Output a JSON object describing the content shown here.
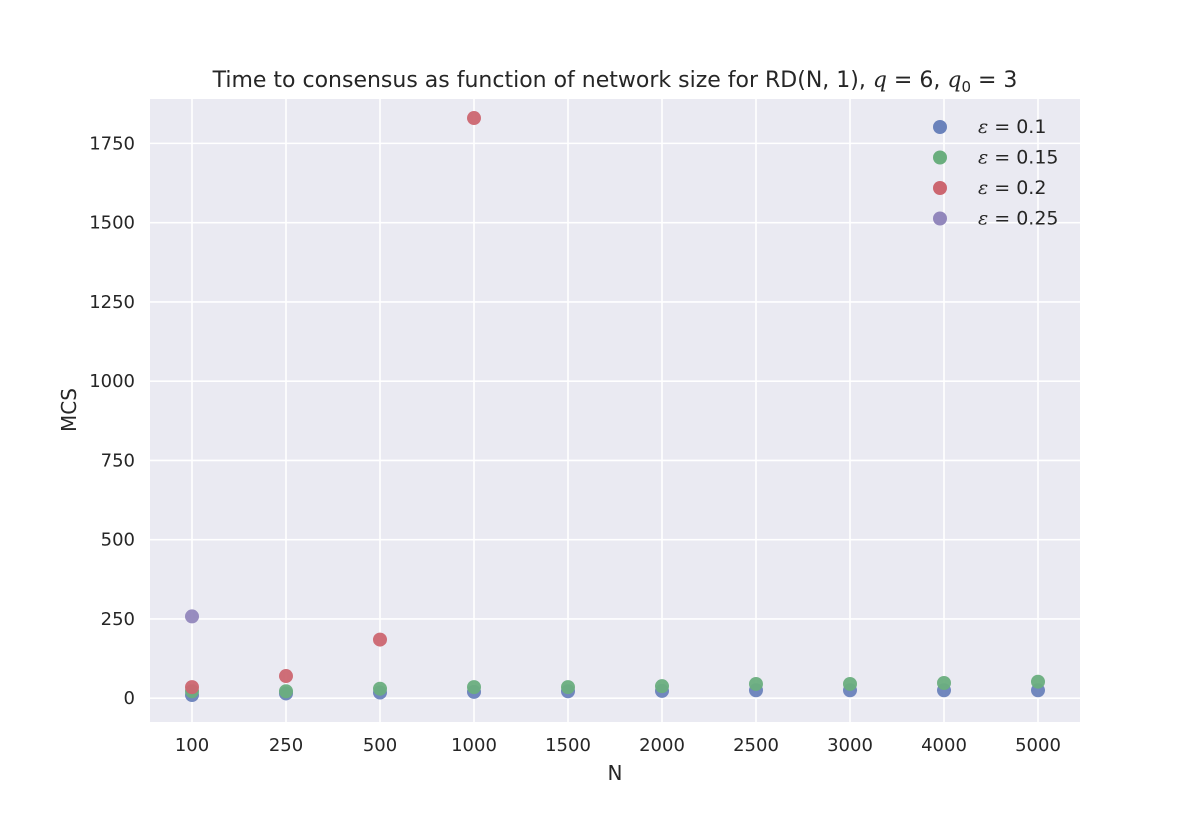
{
  "chart_data": {
    "type": "scatter",
    "title": {
      "prefix": "Time to consensus as function of network size for RD(N, 1), ",
      "q_symbol": "q",
      "q_value": " = 6, ",
      "q0_symbol": "q",
      "q0_subscript": "0",
      "q0_value": " = 3"
    },
    "xlabel": "N",
    "ylabel": "MCS",
    "categories": [
      "100",
      "250",
      "500",
      "1000",
      "1500",
      "2000",
      "2500",
      "3000",
      "4000",
      "5000"
    ],
    "yticks": [
      0,
      250,
      500,
      750,
      1000,
      1250,
      1500,
      1750
    ],
    "ylim": [
      -75,
      1890
    ],
    "grid": true,
    "legend_position": "top-right",
    "series": [
      {
        "name": "ε = 0.1",
        "symbol": "ε",
        "value_label": " = 0.1",
        "color": "#6a82bb",
        "values": [
          10,
          15,
          18,
          20,
          22,
          23,
          25,
          25,
          25,
          25
        ]
      },
      {
        "name": "ε = 0.15",
        "symbol": "ε",
        "value_label": " = 0.15",
        "color": "#6aae7e",
        "values": [
          22,
          22,
          30,
          35,
          35,
          38,
          45,
          45,
          48,
          52
        ]
      },
      {
        "name": "ε = 0.2",
        "symbol": "ε",
        "value_label": " = 0.2",
        "color": "#cc6670",
        "values": [
          35,
          70,
          185,
          1830,
          null,
          null,
          null,
          null,
          null,
          null
        ]
      },
      {
        "name": "ε = 0.25",
        "symbol": "ε",
        "value_label": " = 0.25",
        "color": "#9287bc",
        "values": [
          258,
          null,
          null,
          null,
          null,
          null,
          null,
          null,
          null,
          null
        ]
      }
    ]
  }
}
